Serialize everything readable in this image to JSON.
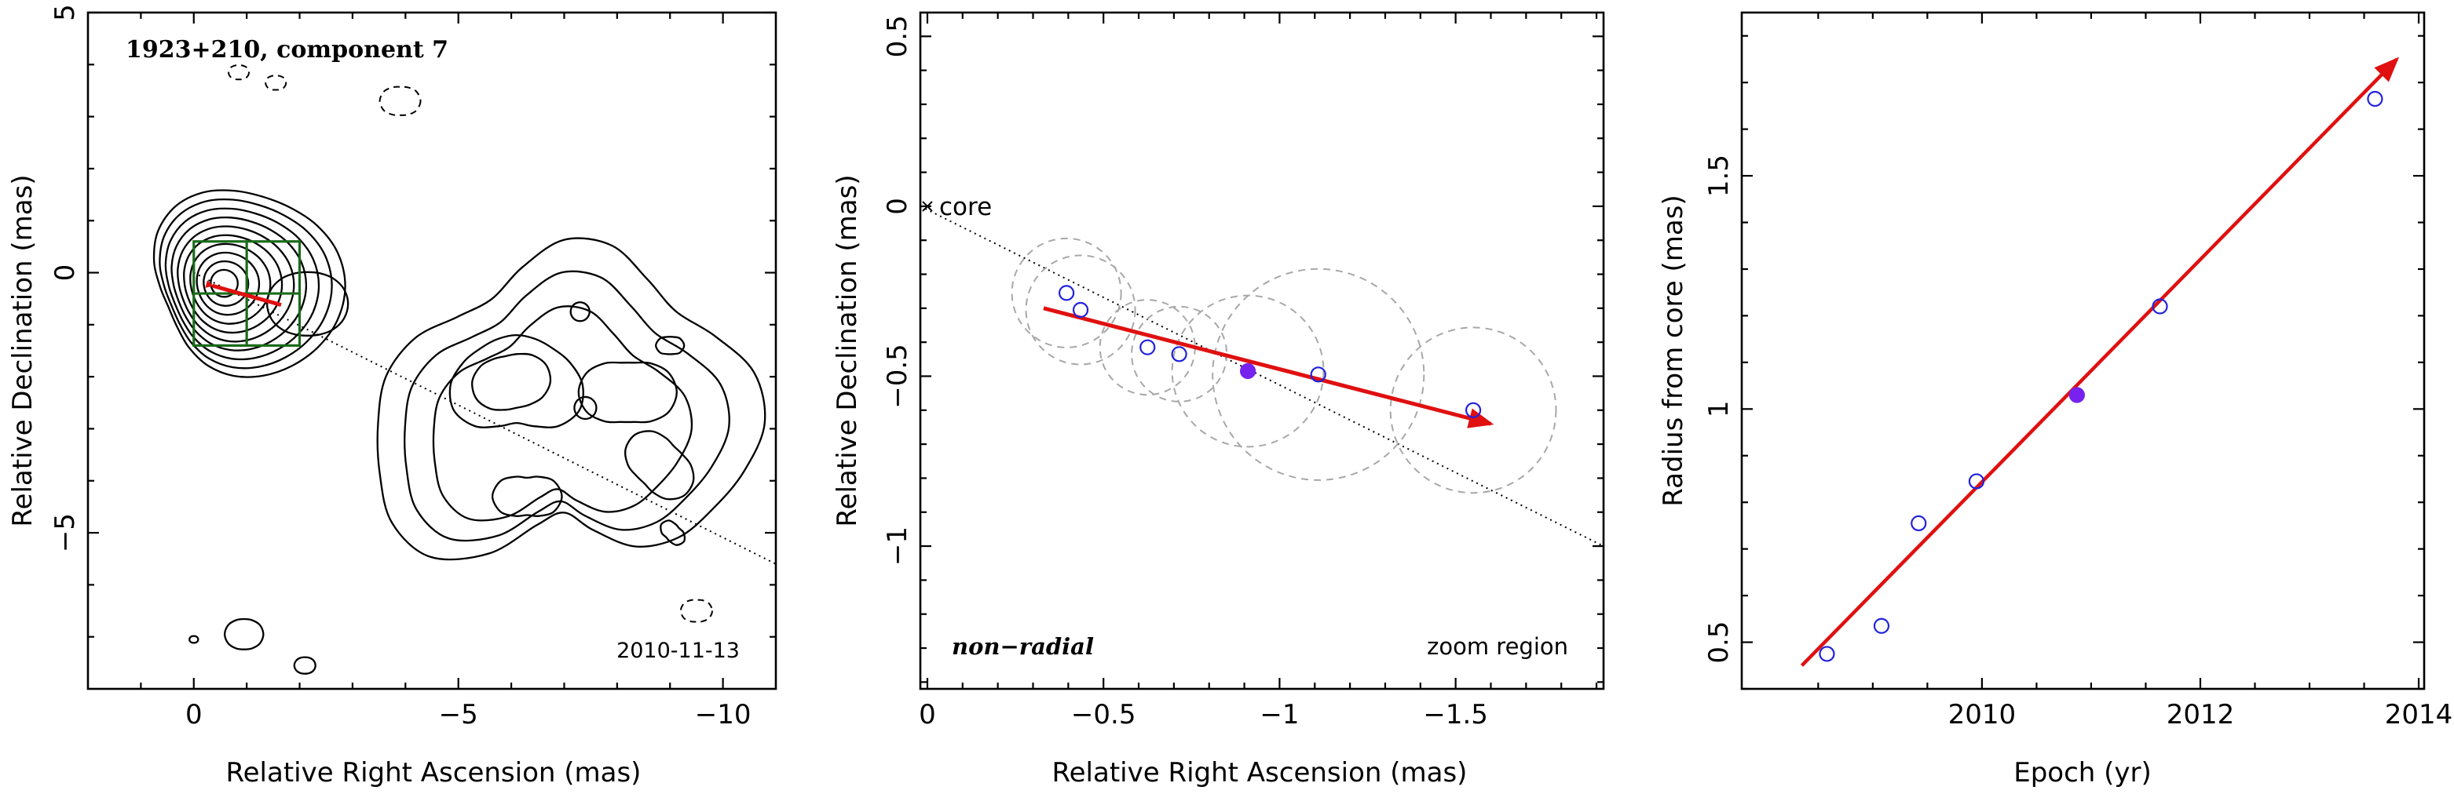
{
  "chart_data": [
    {
      "type": "contour",
      "title": "1923+210, component 7",
      "date": "2010-11-13",
      "xlabel": "Relative Right Ascension (mas)",
      "ylabel": "Relative Declination (mas)",
      "xlim": [
        2,
        -11
      ],
      "ylim": [
        -8,
        5
      ],
      "xticks": [
        0,
        -5,
        -10
      ],
      "yticks": [
        5,
        0,
        -5
      ],
      "xtick_labels": [
        "0",
        "−5",
        "−10"
      ],
      "ytick_labels": [
        "5",
        "0",
        "−5"
      ],
      "grid": false,
      "core_contour_levels": 10,
      "core_center": [
        -0.55,
        -0.2
      ],
      "jet_center": [
        -7.0,
        -2.9
      ],
      "zoom_box": {
        "x": [
          0,
          -2
        ],
        "y": [
          0.6,
          -1.4
        ]
      },
      "motion_vector": {
        "from": [
          -0.35,
          -0.25
        ],
        "to": [
          -1.65,
          -0.62
        ]
      },
      "ridge_line": {
        "from": [
          0,
          0
        ],
        "to": [
          -11,
          -5.6
        ]
      },
      "negative_contours": [
        {
          "x": -3.9,
          "y": 3.3
        },
        {
          "x": -1.55,
          "y": 3.65
        },
        {
          "x": -0.85,
          "y": 3.85
        },
        {
          "x": -9.5,
          "y": -6.5
        }
      ],
      "positive_islands": [
        {
          "x": -0.95,
          "y": -6.95
        },
        {
          "x": -2.1,
          "y": -7.55
        },
        {
          "x": 0.0,
          "y": -7.05
        }
      ],
      "colors": {
        "contour": "#000000",
        "box": "#1a6b1a",
        "vector": "#e01010"
      }
    },
    {
      "type": "scatter",
      "xlabel": "Relative Right Ascension (mas)",
      "ylabel": "Relative Declination (mas)",
      "xlim": [
        0.02,
        -1.92
      ],
      "ylim": [
        -1.42,
        0.57
      ],
      "xticks": [
        0,
        -0.5,
        -1,
        -1.5
      ],
      "yticks": [
        0.5,
        0,
        -0.5,
        -1
      ],
      "xtick_labels": [
        "0",
        "−0.5",
        "−1",
        "−1.5"
      ],
      "ytick_labels": [
        "0.5",
        "0",
        "−0.5",
        "−1"
      ],
      "grid": false,
      "annotations": [
        "core",
        "non−radial",
        "zoom region"
      ],
      "core_position": [
        0,
        0
      ],
      "points": [
        {
          "x": -0.395,
          "y": -0.255,
          "r": 0.155,
          "filled": false
        },
        {
          "x": -0.435,
          "y": -0.305,
          "r": 0.155,
          "filled": false
        },
        {
          "x": -0.625,
          "y": -0.415,
          "r": 0.135,
          "filled": false
        },
        {
          "x": -0.715,
          "y": -0.435,
          "r": 0.135,
          "filled": false
        },
        {
          "x": -0.91,
          "y": -0.485,
          "r": 0.215,
          "filled": true
        },
        {
          "x": -1.11,
          "y": -0.495,
          "r": 0.3,
          "filled": false
        },
        {
          "x": -1.55,
          "y": -0.6,
          "r": 0.235,
          "filled": false
        }
      ],
      "motion_vector": {
        "from": [
          -0.33,
          -0.3
        ],
        "to": [
          -1.6,
          -0.64
        ]
      },
      "ridge_line": {
        "from": [
          0.02,
          0.0
        ],
        "to": [
          -1.92,
          -1.0
        ]
      },
      "colors": {
        "open_point": "#2222dd",
        "filled_point": "#7722ee",
        "vector": "#e01010",
        "circle": "#a8a8a8"
      }
    },
    {
      "type": "scatter",
      "xlabel": "Epoch (yr)",
      "ylabel": "Radius from core (mas)",
      "xlim": [
        2007.8,
        2014.05
      ],
      "ylim": [
        0.4,
        1.85
      ],
      "xticks": [
        2010,
        2012,
        2014
      ],
      "yticks": [
        0.5,
        1,
        1.5
      ],
      "xtick_labels": [
        "2010",
        "2012",
        "2014"
      ],
      "ytick_labels": [
        "0.5",
        "1",
        "1.5"
      ],
      "grid": false,
      "points": [
        {
          "x": 2008.58,
          "y": 0.475,
          "filled": false
        },
        {
          "x": 2009.08,
          "y": 0.535,
          "filled": false
        },
        {
          "x": 2009.42,
          "y": 0.755,
          "filled": false
        },
        {
          "x": 2009.95,
          "y": 0.845,
          "filled": false
        },
        {
          "x": 2010.87,
          "y": 1.03,
          "filled": true
        },
        {
          "x": 2011.63,
          "y": 1.22,
          "filled": false
        },
        {
          "x": 2013.6,
          "y": 1.665,
          "filled": false
        }
      ],
      "fit_line": {
        "from": [
          2008.35,
          0.45
        ],
        "to": [
          2013.8,
          1.75
        ]
      },
      "colors": {
        "open_point": "#2222dd",
        "filled_point": "#7722ee",
        "fit": "#e01010"
      }
    }
  ]
}
